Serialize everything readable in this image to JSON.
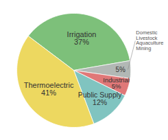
{
  "chart_data": {
    "type": "pie",
    "categories": [
      "Irrigation",
      "Domestic\nLivestock\nAquaculture\nMining",
      "Industrial",
      "Public Supply",
      "Thermoelectric"
    ],
    "values": [
      37,
      5,
      5,
      12,
      41
    ],
    "value_labels": [
      "37%",
      "5%",
      "5%",
      "12%",
      "41%"
    ],
    "colors": [
      "#7DC07A",
      "#B2B8B5",
      "#E07878",
      "#80C4C0",
      "#EDD860"
    ],
    "data_labels": true
  }
}
